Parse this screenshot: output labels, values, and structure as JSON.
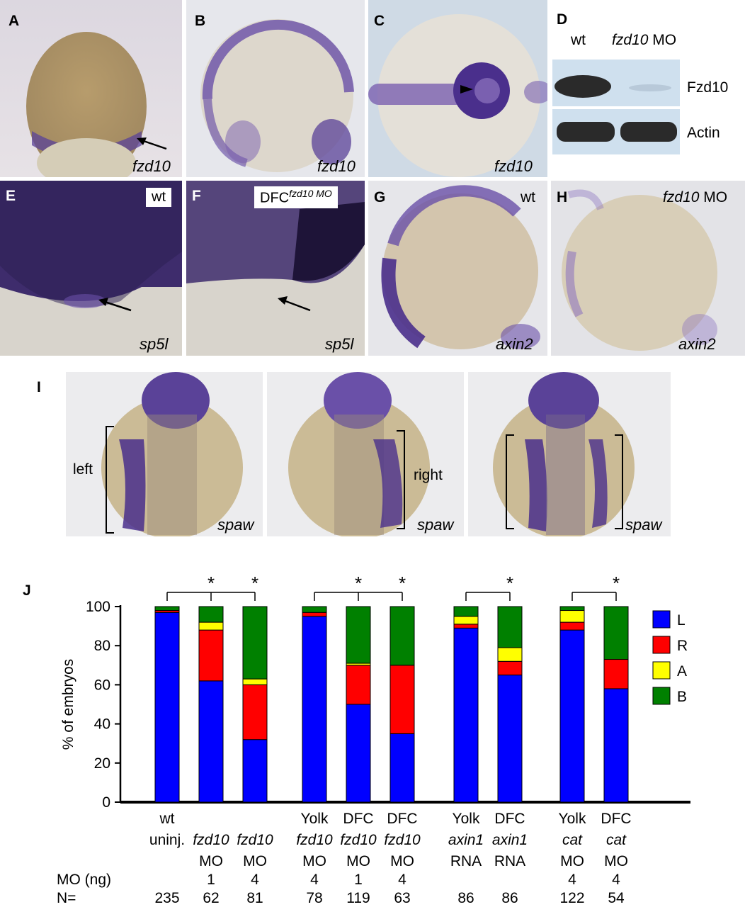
{
  "panels": {
    "A": {
      "label": "A",
      "gene": "fzd10"
    },
    "B": {
      "label": "B",
      "gene": "fzd10"
    },
    "C": {
      "label": "C",
      "gene": "fzd10"
    },
    "D": {
      "label": "D",
      "lane_wt": "wt",
      "lane_mo_gene": "fzd10",
      "lane_mo_suffix": " MO",
      "band1": "Fzd10",
      "band2": "Actin"
    },
    "E": {
      "label": "E",
      "tag": "wt",
      "gene": "sp5l"
    },
    "F": {
      "label": "F",
      "tag_main": "DFC",
      "tag_sup": "fzd10 MO",
      "gene": "sp5l"
    },
    "G": {
      "label": "G",
      "tag": "wt",
      "gene": "axin2"
    },
    "H": {
      "label": "H",
      "tag_gene": "fzd10",
      "tag_suffix": " MO",
      "gene": "axin2"
    },
    "I": {
      "label": "I",
      "sub1_side": "left",
      "sub2_side": "right",
      "gene": "spaw"
    }
  },
  "colors": {
    "L": "#0000ff",
    "R": "#ff0000",
    "A": "#ffff00",
    "B": "#008000",
    "stain": "#4a2f8c"
  },
  "chart_data": {
    "type": "bar",
    "stacked": true,
    "panel_label": "J",
    "ylabel": "% of embryos",
    "ylim": [
      0,
      100
    ],
    "yticks": [
      0,
      20,
      40,
      60,
      80,
      100
    ],
    "legend": [
      "L",
      "R",
      "A",
      "B"
    ],
    "legend_placement": "right",
    "row_labels": {
      "mo_ng": "MO (ng)",
      "n": "N="
    },
    "categories": [
      {
        "line1": "wt",
        "line2": "uninj.",
        "line2_italic": false,
        "line3": "",
        "mo_ng": "",
        "n": "235"
      },
      {
        "line1": "",
        "line2": "fzd10",
        "line2_italic": true,
        "line3": "MO",
        "mo_ng": "1",
        "n": "62"
      },
      {
        "line1": "",
        "line2": "fzd10",
        "line2_italic": true,
        "line3": "MO",
        "mo_ng": "4",
        "n": "81"
      },
      {
        "line1": "Yolk",
        "line2": "fzd10",
        "line2_italic": true,
        "line3": "MO",
        "mo_ng": "4",
        "n": "78"
      },
      {
        "line1": "DFC",
        "line2": "fzd10",
        "line2_italic": true,
        "line3": "MO",
        "mo_ng": "1",
        "n": "119"
      },
      {
        "line1": "DFC",
        "line2": "fzd10",
        "line2_italic": true,
        "line3": "MO",
        "mo_ng": "4",
        "n": "63"
      },
      {
        "line1": "Yolk",
        "line2": "axin1",
        "line2_italic": true,
        "line3": "RNA",
        "mo_ng": "",
        "n": "86"
      },
      {
        "line1": "DFC",
        "line2": "axin1",
        "line2_italic": true,
        "line3": "RNA",
        "mo_ng": "",
        "n": "86"
      },
      {
        "line1": "Yolk",
        "line2": "cat",
        "line2_italic": true,
        "line3": "MO",
        "mo_ng": "4",
        "n": "122"
      },
      {
        "line1": "DFC",
        "line2": "cat",
        "line2_italic": true,
        "line3": "MO",
        "mo_ng": "4",
        "n": "54"
      }
    ],
    "series": [
      {
        "name": "L",
        "values": [
          97,
          62,
          32,
          95,
          50,
          35,
          89,
          65,
          88,
          58
        ]
      },
      {
        "name": "R",
        "values": [
          1,
          26,
          28,
          2,
          20,
          35,
          2,
          7,
          4,
          15
        ]
      },
      {
        "name": "A",
        "values": [
          0,
          4,
          3,
          0,
          1,
          0,
          4,
          7,
          6,
          0
        ]
      },
      {
        "name": "B",
        "values": [
          2,
          8,
          37,
          3,
          29,
          30,
          5,
          21,
          2,
          27
        ]
      }
    ],
    "significance": [
      {
        "from": 0,
        "to": [
          1,
          2
        ],
        "label": "*"
      },
      {
        "from": 3,
        "to": [
          4,
          5
        ],
        "label": "*"
      },
      {
        "from": 6,
        "to": [
          7
        ],
        "label": "*"
      },
      {
        "from": 8,
        "to": [
          9
        ],
        "label": "*"
      }
    ]
  }
}
